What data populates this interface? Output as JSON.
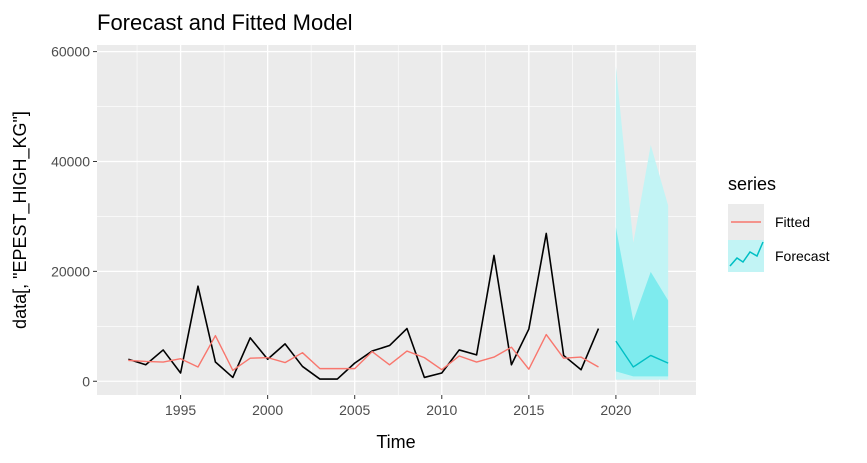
{
  "chart_data": {
    "type": "line",
    "title": "Forecast and Fitted Model",
    "xlabel": "Time",
    "ylabel": "data[, \"EPEST_HIGH_KG\"]",
    "xlim": [
      1990.2,
      2024.6
    ],
    "ylim": [
      -2500,
      61200
    ],
    "x_ticks": [
      1995,
      2000,
      2005,
      2010,
      2015,
      2020
    ],
    "x_tick_labels": [
      "1995",
      "2000",
      "2005",
      "2010",
      "2015",
      "2020"
    ],
    "y_ticks": [
      0,
      20000,
      40000,
      60000
    ],
    "y_tick_labels": [
      "0",
      "20000",
      "40000",
      "60000"
    ],
    "grid": true,
    "legend": {
      "title": "series",
      "position": "right",
      "entries": [
        {
          "label": "Fitted",
          "color": "#f8766d"
        },
        {
          "label": "Forecast",
          "color": "#00bfc4"
        }
      ]
    },
    "series": [
      {
        "key": "observed",
        "color": "#000000",
        "x": [
          1992,
          1993,
          1994,
          1995,
          1996,
          1997,
          1998,
          1999,
          2000,
          2001,
          2002,
          2003,
          2004,
          2005,
          2006,
          2007,
          2008,
          2009,
          2010,
          2011,
          2012,
          2013,
          2014,
          2015,
          2016,
          2017,
          2018,
          2019
        ],
        "y": [
          4000,
          3000,
          5700,
          1500,
          17300,
          3500,
          700,
          7900,
          4000,
          6800,
          2700,
          400,
          400,
          3300,
          5500,
          6500,
          9600,
          700,
          1500,
          5700,
          4800,
          22900,
          3000,
          9500,
          26900,
          4700,
          2100,
          9600
        ]
      },
      {
        "name": "Fitted",
        "color": "#f8766d",
        "x": [
          1992,
          1993,
          1994,
          1995,
          1996,
          1997,
          1998,
          1999,
          2000,
          2001,
          2002,
          2003,
          2004,
          2005,
          2006,
          2007,
          2008,
          2009,
          2010,
          2011,
          2012,
          2013,
          2014,
          2015,
          2016,
          2017,
          2018,
          2019
        ],
        "y": [
          3800,
          3600,
          3500,
          4100,
          2600,
          8300,
          2000,
          4200,
          4300,
          3400,
          5200,
          2300,
          2300,
          2300,
          5400,
          3000,
          5500,
          4300,
          2100,
          4600,
          3500,
          4400,
          6200,
          2200,
          8500,
          4200,
          4400,
          2600
        ]
      },
      {
        "name": "Forecast",
        "color": "#00bfc4",
        "x": [
          2020,
          2021,
          2022,
          2023
        ],
        "y": [
          7300,
          2600,
          4700,
          3300
        ],
        "lo80": [
          1800,
          900,
          900,
          900
        ],
        "hi80": [
          28000,
          11000,
          19900,
          14700
        ],
        "lo95": [
          300,
          300,
          300,
          300
        ],
        "hi95": [
          57300,
          25200,
          43000,
          32000
        ]
      }
    ]
  }
}
